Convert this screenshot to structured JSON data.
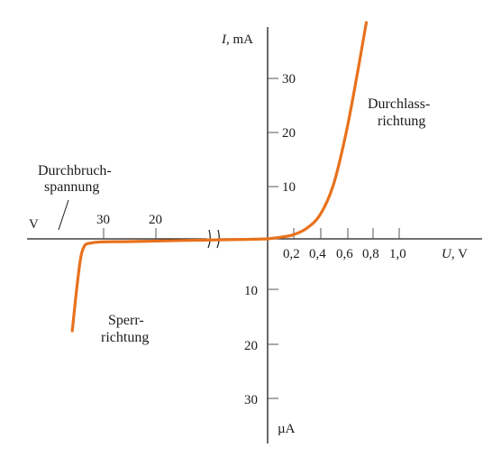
{
  "chart_data": {
    "type": "line",
    "title": "",
    "y_axis_label_top": {
      "symbol": "I",
      "unit": ", mA"
    },
    "y_axis_label_bottom": "µA",
    "x_axis_label": {
      "symbol": "U",
      "unit": ", V"
    },
    "x_axis_left_unit": "V",
    "x_ticks_positive": [
      "0,2",
      "0,4",
      "0,6",
      "0,8",
      "1,0"
    ],
    "x_ticks_negative": [
      "30",
      "20"
    ],
    "y_ticks_positive": [
      "10",
      "20",
      "30"
    ],
    "y_ticks_negative": [
      "10",
      "20",
      "30"
    ],
    "axis_break": true,
    "annotations": {
      "breakdown": [
        "Durchbruch-",
        "spannung"
      ],
      "forward": [
        "Durchlass-",
        "richtung"
      ],
      "reverse": [
        "Sperr-",
        "richtung"
      ]
    },
    "line_color": "#e8711c",
    "series": [
      {
        "segment": "forward",
        "x_unit": "V",
        "y_unit": "mA",
        "points": [
          [
            0,
            0
          ],
          [
            0.1,
            0.3
          ],
          [
            0.2,
            0.8
          ],
          [
            0.3,
            2
          ],
          [
            0.4,
            4.5
          ],
          [
            0.5,
            10
          ],
          [
            0.6,
            20
          ],
          [
            0.7,
            33
          ],
          [
            0.75,
            40
          ]
        ]
      },
      {
        "segment": "reverse",
        "x_unit": "V",
        "y_unit": "µA",
        "points": [
          [
            -0.5,
            -0.1
          ],
          [
            -15,
            -0.3
          ],
          [
            -25,
            -0.5
          ],
          [
            -32,
            -0.7
          ],
          [
            -34,
            -2
          ],
          [
            -35,
            -8
          ],
          [
            -36,
            -17
          ]
        ]
      }
    ]
  }
}
